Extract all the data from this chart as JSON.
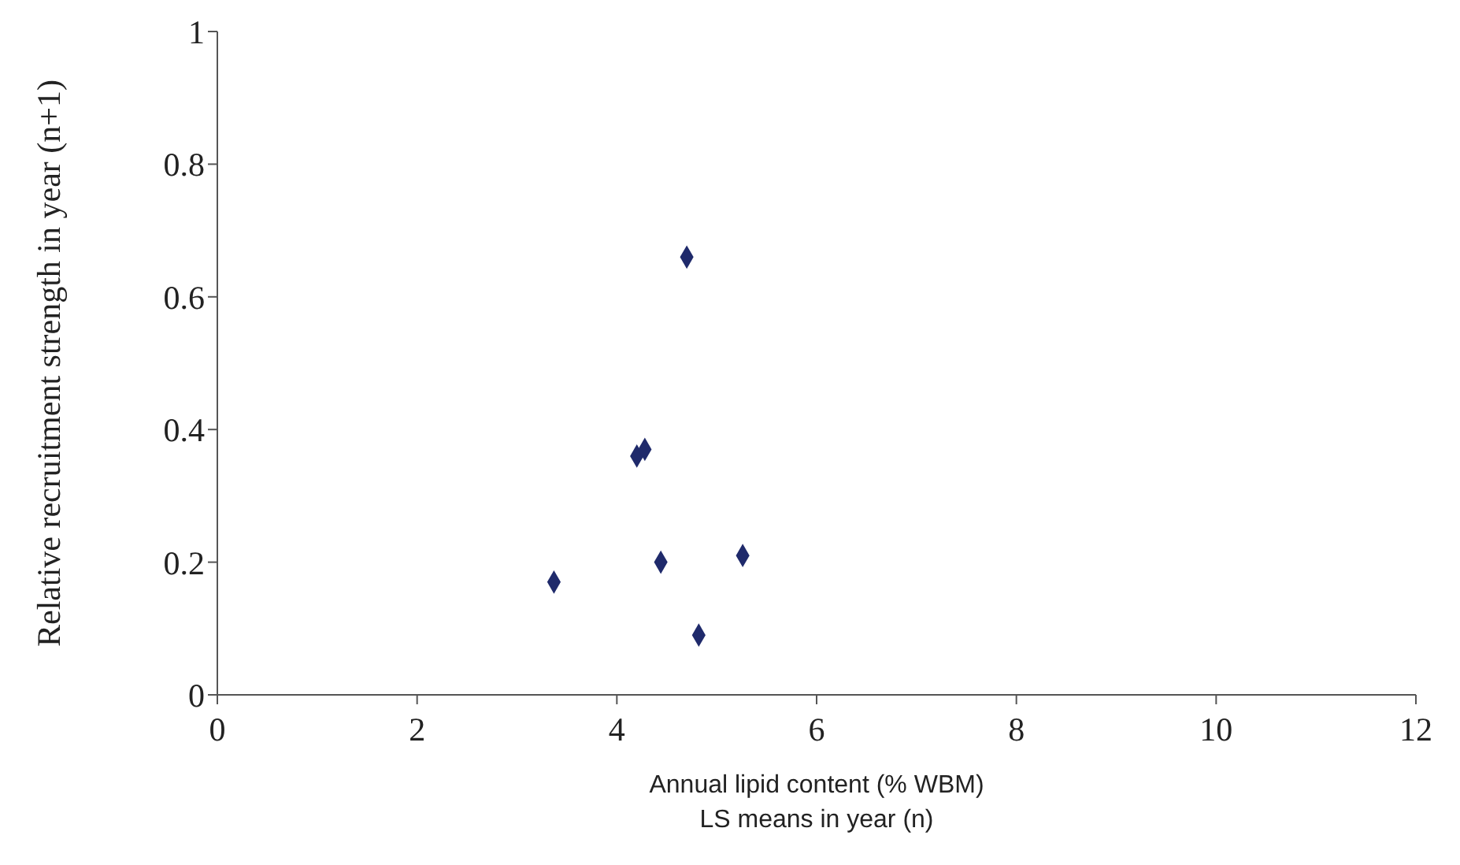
{
  "chart_data": {
    "type": "scatter",
    "xlabel": "Annual lipid content (% WBM)\nLS means in year (n)",
    "ylabel": "Relative recruitment strength in year (n+1)",
    "x": [
      4.7,
      4.2,
      4.28,
      3.37,
      4.44,
      5.26,
      4.82
    ],
    "series": [
      {
        "color": "#1f2a6b",
        "values": [
          0.66,
          0.36,
          0.37,
          0.17,
          0.2,
          0.21,
          0.09
        ]
      }
    ],
    "xlim": [
      0,
      12
    ],
    "xticks": [
      0,
      2,
      4,
      6,
      8,
      10,
      12
    ],
    "ylim": [
      0,
      1
    ],
    "yticks": [
      0,
      0.2,
      0.4,
      0.6,
      0.8,
      1
    ],
    "marker": "diamond",
    "grid": false,
    "legend": false
  }
}
